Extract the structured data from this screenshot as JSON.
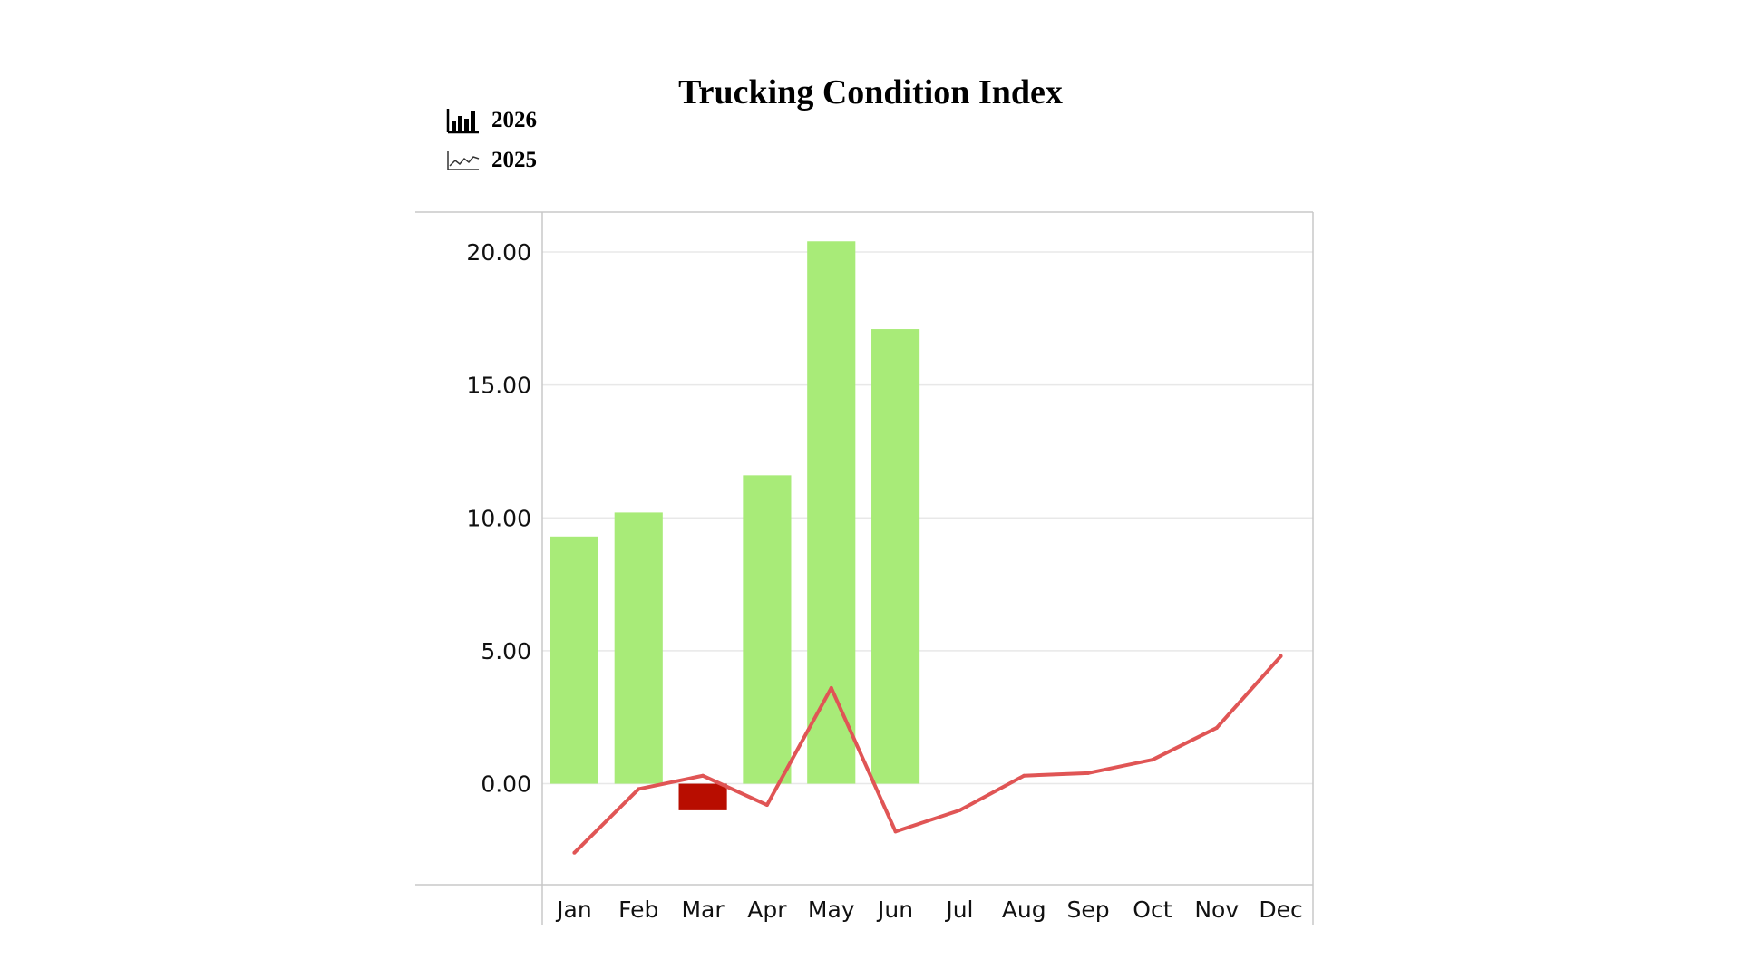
{
  "chart_data": {
    "type": "bar",
    "title": "Trucking Condition Index",
    "xlabel": "",
    "ylabel": "",
    "categories": [
      "Jan",
      "Feb",
      "Mar",
      "Apr",
      "May",
      "Jun",
      "Jul",
      "Aug",
      "Sep",
      "Oct",
      "Nov",
      "Dec"
    ],
    "series": [
      {
        "name": "2026",
        "type": "bar",
        "values": [
          9.3,
          10.2,
          -1.0,
          11.6,
          20.4,
          17.1,
          null,
          null,
          null,
          null,
          null,
          null
        ],
        "color_positive": "#a8eb78",
        "color_negative": "#b80d00"
      },
      {
        "name": "2025",
        "type": "line",
        "values": [
          -2.6,
          -0.2,
          0.3,
          -0.8,
          3.6,
          -1.8,
          -1.0,
          0.3,
          0.4,
          0.9,
          2.1,
          4.8
        ],
        "color": "#e05555"
      }
    ],
    "yticks": [
      0,
      5,
      10,
      15,
      20
    ],
    "ytick_labels": [
      "0.00",
      "5.00",
      "10.00",
      "15.00",
      "20.00"
    ],
    "ylim": [
      -3.8,
      21.5
    ],
    "grid": true,
    "legend_position": "top-left"
  }
}
